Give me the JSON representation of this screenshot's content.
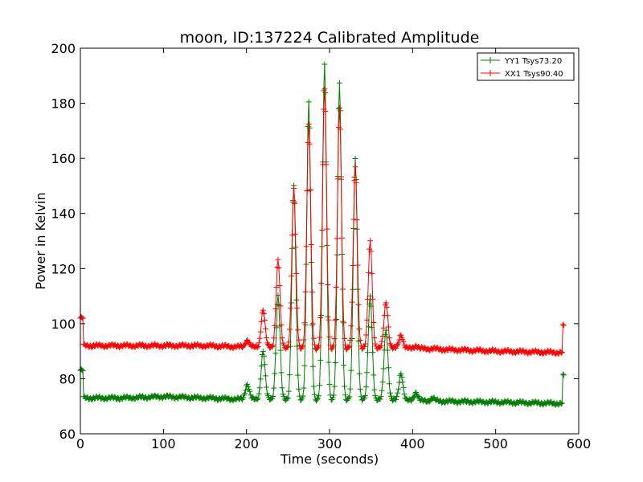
{
  "chart_data": {
    "type": "line",
    "title": "moon, ID:137224 Calibrated Amplitude",
    "xlabel": "Time (seconds)",
    "ylabel": "Power in Kelvin",
    "xlim": [
      0,
      600
    ],
    "ylim": [
      60,
      200
    ],
    "x_ticks": [
      0,
      100,
      200,
      300,
      400,
      500,
      600
    ],
    "y_ticks": [
      60,
      80,
      100,
      120,
      140,
      160,
      180,
      200
    ],
    "grid": false,
    "legend_position": "top-right",
    "marker": "plus",
    "series": [
      {
        "name": "YY1 Tsys73.20",
        "color": "#007f00",
        "baseline": [
          [
            0,
            83
          ],
          [
            3,
            83
          ],
          [
            4,
            73
          ],
          [
            50,
            73
          ],
          [
            100,
            73.5
          ],
          [
            150,
            73
          ],
          [
            200,
            72.5
          ],
          [
            300,
            72.5
          ],
          [
            400,
            72
          ],
          [
            500,
            71.5
          ],
          [
            580,
            71
          ],
          [
            581,
            81
          ]
        ],
        "peaks": [
          [
            201,
            78
          ],
          [
            220,
            90
          ],
          [
            238,
            110
          ],
          [
            257,
            150
          ],
          [
            275,
            180
          ],
          [
            294,
            194
          ],
          [
            312,
            187
          ],
          [
            331,
            160
          ],
          [
            349,
            110
          ],
          [
            368,
            98
          ],
          [
            386,
            82
          ],
          [
            404,
            75
          ],
          [
            424,
            73
          ]
        ],
        "x": [
          0,
          3,
          50,
          100,
          150,
          201,
          220,
          238,
          257,
          275,
          294,
          312,
          331,
          349,
          368,
          386,
          404,
          450,
          500,
          550,
          580,
          581
        ],
        "values": [
          83,
          73,
          73,
          73.5,
          73,
          78,
          90,
          110,
          150,
          180,
          194,
          187,
          160,
          110,
          98,
          82,
          75,
          72,
          71.5,
          71.5,
          71,
          81
        ]
      },
      {
        "name": "XX1 Tsys90.40",
        "color": "#ff0000",
        "baseline": [
          [
            0,
            102
          ],
          [
            3,
            102
          ],
          [
            4,
            92
          ],
          [
            50,
            92
          ],
          [
            100,
            92
          ],
          [
            150,
            92
          ],
          [
            200,
            91.5
          ],
          [
            300,
            91
          ],
          [
            400,
            91
          ],
          [
            500,
            90
          ],
          [
            580,
            89.5
          ],
          [
            581,
            99
          ]
        ],
        "peaks": [
          [
            201,
            94
          ],
          [
            220,
            105
          ],
          [
            238,
            123
          ],
          [
            257,
            149
          ],
          [
            275,
            172
          ],
          [
            294,
            185
          ],
          [
            312,
            178
          ],
          [
            331,
            157
          ],
          [
            349,
            130
          ],
          [
            368,
            108
          ],
          [
            386,
            96
          ],
          [
            404,
            92
          ],
          [
            424,
            91
          ]
        ],
        "x": [
          0,
          3,
          50,
          100,
          150,
          201,
          220,
          238,
          257,
          275,
          294,
          312,
          331,
          349,
          368,
          386,
          404,
          450,
          500,
          550,
          580,
          581
        ],
        "values": [
          102,
          92,
          92,
          92,
          92,
          94,
          105,
          123,
          149,
          172,
          185,
          178,
          157,
          130,
          108,
          96,
          92,
          91,
          90,
          90,
          89.5,
          99
        ]
      }
    ]
  }
}
